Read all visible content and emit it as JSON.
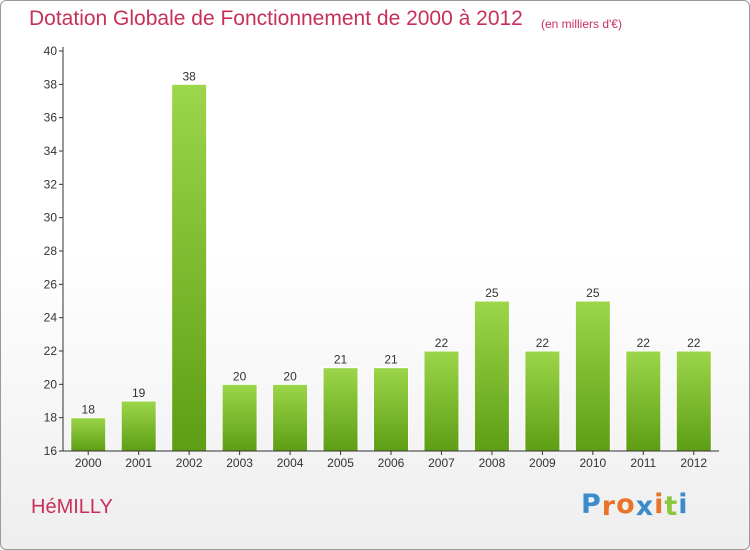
{
  "header": {
    "title": "Dotation Globale de Fonctionnement de 2000 à 2012",
    "unit": "(en milliers d'€)"
  },
  "footer": {
    "commune": "HéMILLY",
    "logo": [
      "P",
      "r",
      "o",
      "x",
      "i",
      "t",
      "i"
    ],
    "logo_colors": [
      "#3a8ccc",
      "#e8742a",
      "#e8742a",
      "#3a8ccc",
      "#e8742a",
      "#8cc63e",
      "#3a8ccc"
    ]
  },
  "colors": {
    "bar_top": "#9cd64a",
    "bar_bottom": "#5e9e14",
    "accent": "#c8305a"
  },
  "chart_data": {
    "type": "bar",
    "title": "Dotation Globale de Fonctionnement de 2000 à 2012",
    "subtitle": "(en milliers d'€)",
    "categories": [
      "2000",
      "2001",
      "2002",
      "2003",
      "2004",
      "2005",
      "2006",
      "2007",
      "2008",
      "2009",
      "2010",
      "2011",
      "2012"
    ],
    "values": [
      18,
      19,
      38,
      20,
      20,
      21,
      21,
      22,
      25,
      22,
      25,
      22,
      22
    ],
    "ylim": [
      16,
      40
    ],
    "yticks": [
      16,
      18,
      20,
      22,
      24,
      26,
      28,
      30,
      32,
      34,
      36,
      38,
      40
    ],
    "grid": false,
    "legend": "none"
  }
}
